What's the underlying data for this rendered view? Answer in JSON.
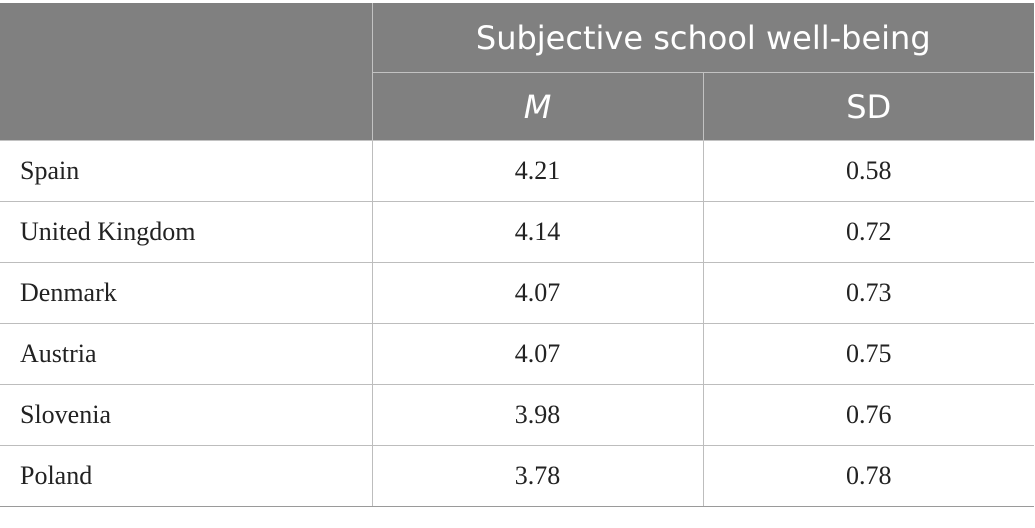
{
  "header": {
    "group_label": "Subjective school well-being",
    "col_mean": "M",
    "col_sd": "SD"
  },
  "rows": [
    {
      "country": "Spain",
      "mean": "4.21",
      "sd": "0.58"
    },
    {
      "country": "United Kingdom",
      "mean": "4.14",
      "sd": "0.72"
    },
    {
      "country": "Denmark",
      "mean": "4.07",
      "sd": "0.73"
    },
    {
      "country": "Austria",
      "mean": "4.07",
      "sd": "0.75"
    },
    {
      "country": "Slovenia",
      "mean": "3.98",
      "sd": "0.76"
    },
    {
      "country": "Poland",
      "mean": "3.78",
      "sd": "0.78"
    }
  ]
}
